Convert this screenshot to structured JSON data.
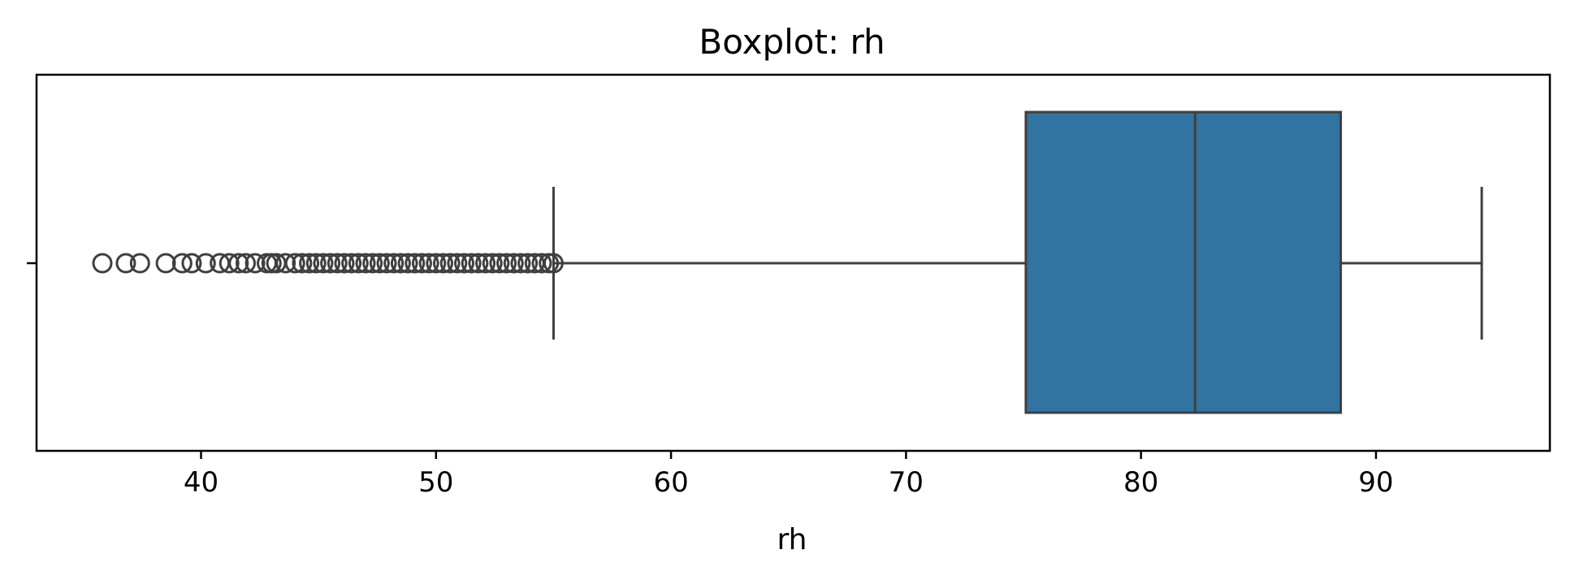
{
  "chart_data": {
    "type": "boxplot",
    "title": "Boxplot: rh",
    "xlabel": "rh",
    "ylabel": "",
    "xlim": [
      33.0,
      97.4
    ],
    "x_ticks": [
      40,
      50,
      60,
      70,
      80,
      90
    ],
    "x_tick_labels": [
      "40",
      "50",
      "60",
      "70",
      "80",
      "90"
    ],
    "grid": false,
    "legend": "none",
    "box": {
      "whisker_low": 55.0,
      "q1": 75.1,
      "median": 82.3,
      "q3": 88.5,
      "whisker_high": 94.5,
      "fill_color": "#3274a1",
      "line_color": "#3f3f3f"
    },
    "outliers": [
      35.8,
      36.8,
      37.4,
      38.5,
      39.2,
      39.6,
      40.2,
      40.8,
      41.2,
      41.6,
      41.9,
      42.3,
      42.8,
      43.0,
      43.2,
      43.6,
      44.0,
      44.3,
      44.6,
      44.9,
      45.2,
      45.5,
      45.8,
      46.1,
      46.4,
      46.7,
      47.0,
      47.3,
      47.6,
      47.9,
      48.2,
      48.5,
      48.8,
      49.1,
      49.4,
      49.7,
      50.0,
      50.3,
      50.6,
      50.9,
      51.2,
      51.5,
      51.8,
      52.1,
      52.4,
      52.7,
      53.0,
      53.3,
      53.6,
      53.9,
      54.2,
      54.5,
      54.8,
      55.0
    ]
  }
}
